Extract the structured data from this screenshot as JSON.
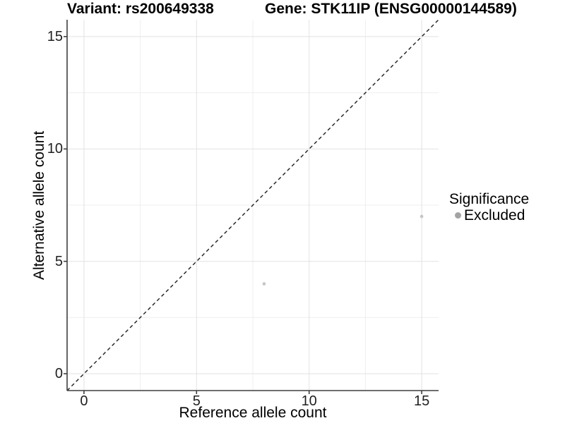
{
  "chart_data": {
    "type": "scatter",
    "title_variant": "Variant: rs200649338",
    "title_gene": "Gene: STK11IP (ENSG00000144589)",
    "xlabel": "Reference allele count",
    "ylabel": "Alternative allele count",
    "xlim": [
      -0.75,
      15.75
    ],
    "ylim": [
      -0.75,
      15.75
    ],
    "major_ticks": [
      0,
      5,
      10,
      15
    ],
    "minor_gridlines": [
      2.5,
      7.5,
      12.5
    ],
    "grid": true,
    "points": [
      {
        "x": 8,
        "y": 4
      },
      {
        "x": 15,
        "y": 7
      }
    ],
    "identity_line": {
      "style": "dashed",
      "from": [
        -0.75,
        -0.75
      ],
      "to": [
        15.75,
        15.75
      ],
      "color": "#1c1c1c"
    },
    "point_color": "#c5c5c5",
    "colors": {
      "grid_major": "#e2e2e2",
      "grid_minor": "#efefef",
      "axis": "#3f3f3f",
      "background": "#ffffff"
    },
    "legend": {
      "title": "Significance",
      "position": "right",
      "items": [
        {
          "label": "Excluded",
          "color": "#a3a3a3"
        }
      ]
    }
  }
}
